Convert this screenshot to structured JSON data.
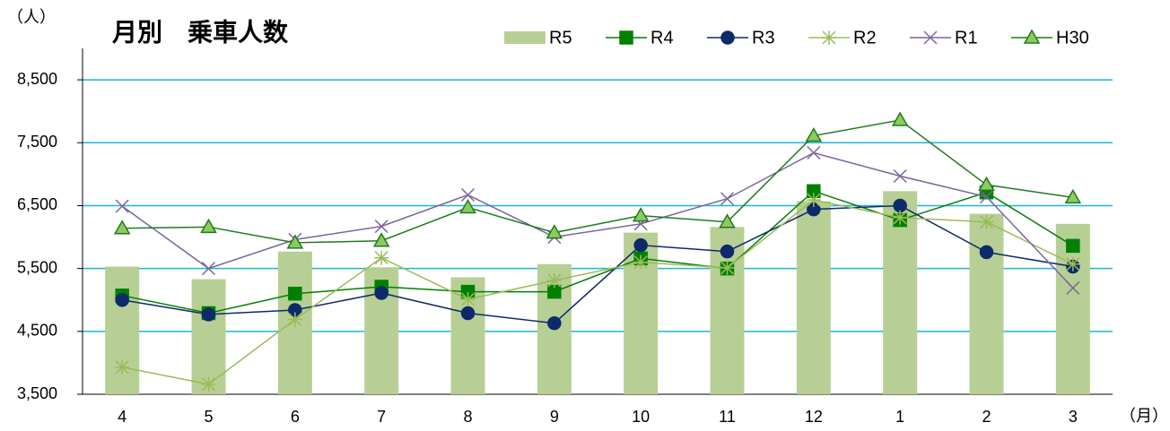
{
  "chart_data": {
    "type": "bar_line",
    "title": "月別　乗車人数",
    "y_label": "（人）",
    "x_label": "（月）",
    "categories": [
      "4",
      "5",
      "6",
      "7",
      "8",
      "9",
      "10",
      "11",
      "12",
      "1",
      "2",
      "3"
    ],
    "ylim": [
      3500,
      9000
    ],
    "yticks": [
      {
        "value": 3500,
        "label": "3,500"
      },
      {
        "value": 4500,
        "label": "4,500"
      },
      {
        "value": 5500,
        "label": "5,500"
      },
      {
        "value": 6500,
        "label": "6,500"
      },
      {
        "value": 7500,
        "label": "7,500"
      },
      {
        "value": 8500,
        "label": "8,500"
      }
    ],
    "grid": true,
    "series": [
      {
        "name": "R5",
        "type": "bar",
        "color": "#b7cf94",
        "values": [
          5530,
          5330,
          5770,
          5520,
          5360,
          5570,
          6070,
          6160,
          6570,
          6730,
          6370,
          6210
        ]
      },
      {
        "name": "R4",
        "type": "line",
        "marker": "square",
        "color": "#008000",
        "values": [
          5070,
          4790,
          5100,
          5210,
          5130,
          5130,
          5660,
          5500,
          6730,
          6270,
          6710,
          5860
        ]
      },
      {
        "name": "R3",
        "type": "line",
        "marker": "circle",
        "color": "#0d2a6b",
        "values": [
          5000,
          4770,
          4840,
          5110,
          4790,
          4630,
          5870,
          5770,
          6440,
          6500,
          5760,
          5530
        ]
      },
      {
        "name": "R2",
        "type": "line",
        "marker": "star",
        "color": "#9bbb59",
        "values": [
          3930,
          3660,
          4690,
          5670,
          5010,
          5310,
          5600,
          5510,
          6590,
          6310,
          6240,
          5570
        ]
      },
      {
        "name": "R1",
        "type": "line",
        "marker": "x",
        "color": "#7b64a0",
        "values": [
          6490,
          5500,
          5960,
          6170,
          6670,
          6000,
          6210,
          6610,
          7340,
          6970,
          6640,
          5190
        ]
      },
      {
        "name": "H30",
        "type": "line",
        "marker": "triangle",
        "color": "#1e7b1e",
        "values": [
          6140,
          6160,
          5910,
          5940,
          6470,
          6070,
          6340,
          6240,
          7610,
          7860,
          6830,
          6630
        ]
      }
    ]
  }
}
